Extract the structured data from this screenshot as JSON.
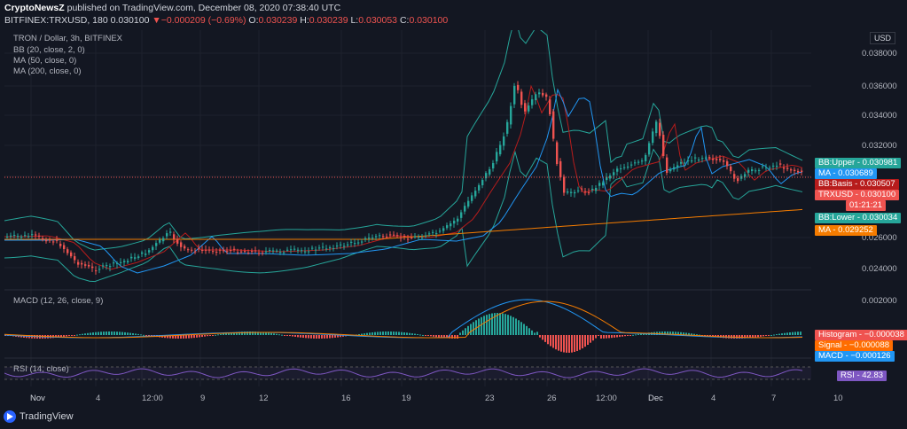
{
  "header": {
    "publisher": "CryptoNewsZ",
    "published_text": " published on TradingView.com, December 08, 2020 07:38:40 UTC",
    "symbol": "BITFINEX:TRXUSD, 180",
    "price": "0.030100",
    "change_arrow": "▼",
    "change": "−0.000209 (−0.69%)",
    "o_label": "O:",
    "o_value": "0.030239",
    "h_label": "H:",
    "h_value": "0.030239",
    "l_label": "L:",
    "l_value": "0.030053",
    "c_label": "C:",
    "c_value": "0.030100"
  },
  "legend": {
    "title": "TRON / Dollar, 3h, BITFINEX",
    "bb": "BB (20, close, 2, 0)",
    "ma50": "MA (50, close, 0)",
    "ma200": "MA (200, close, 0)",
    "macd": "MACD (12, 26, close, 9)",
    "rsi": "RSI (14, close)"
  },
  "currency_button": "USD",
  "price_axis": [
    "0.038000",
    "0.036000",
    "0.034000",
    "0.032000",
    "0.026000",
    "0.024000"
  ],
  "macd_axis": [
    "0.002000"
  ],
  "price_tags": [
    {
      "label": "BB:Upper",
      "value": "0.030981",
      "color": "#26a69a"
    },
    {
      "label": "MA",
      "value": "0.030689",
      "color": "#2196f3"
    },
    {
      "label": "BB:Basis",
      "value": "0.030507",
      "color": "#b71c1c"
    },
    {
      "label": "TRXUSD",
      "value": "0.030100",
      "color": "#ef5350"
    },
    {
      "label": "",
      "value": "01:21:21",
      "color": "#ef5350"
    },
    {
      "label": "BB:Lower",
      "value": "0.030034",
      "color": "#26a69a"
    },
    {
      "label": "MA",
      "value": "0.029252",
      "color": "#f57c00"
    }
  ],
  "macd_tags": [
    {
      "label": "Histogram",
      "value": "−0.000038",
      "color": "#ef5350"
    },
    {
      "label": "Signal",
      "value": "−0.000088",
      "color": "#ff6d00"
    },
    {
      "label": "MACD",
      "value": "−0.000126",
      "color": "#2196f3"
    }
  ],
  "rsi_tag": {
    "label": "RSI",
    "value": "42.83",
    "color": "#7e57c2"
  },
  "x_axis": [
    "Nov",
    "4",
    "12:00",
    "9",
    "12",
    "16",
    "19",
    "23",
    "26",
    "12:00",
    "Dec",
    "4",
    "7",
    "10"
  ],
  "brand": "TradingView",
  "colors": {
    "up": "#26a69a",
    "down": "#ef5350",
    "ma50": "#2196f3",
    "ma200": "#f57c00",
    "bb": "#26a69a",
    "basis": "#b71c1c",
    "rsi": "#7e57c2"
  }
}
